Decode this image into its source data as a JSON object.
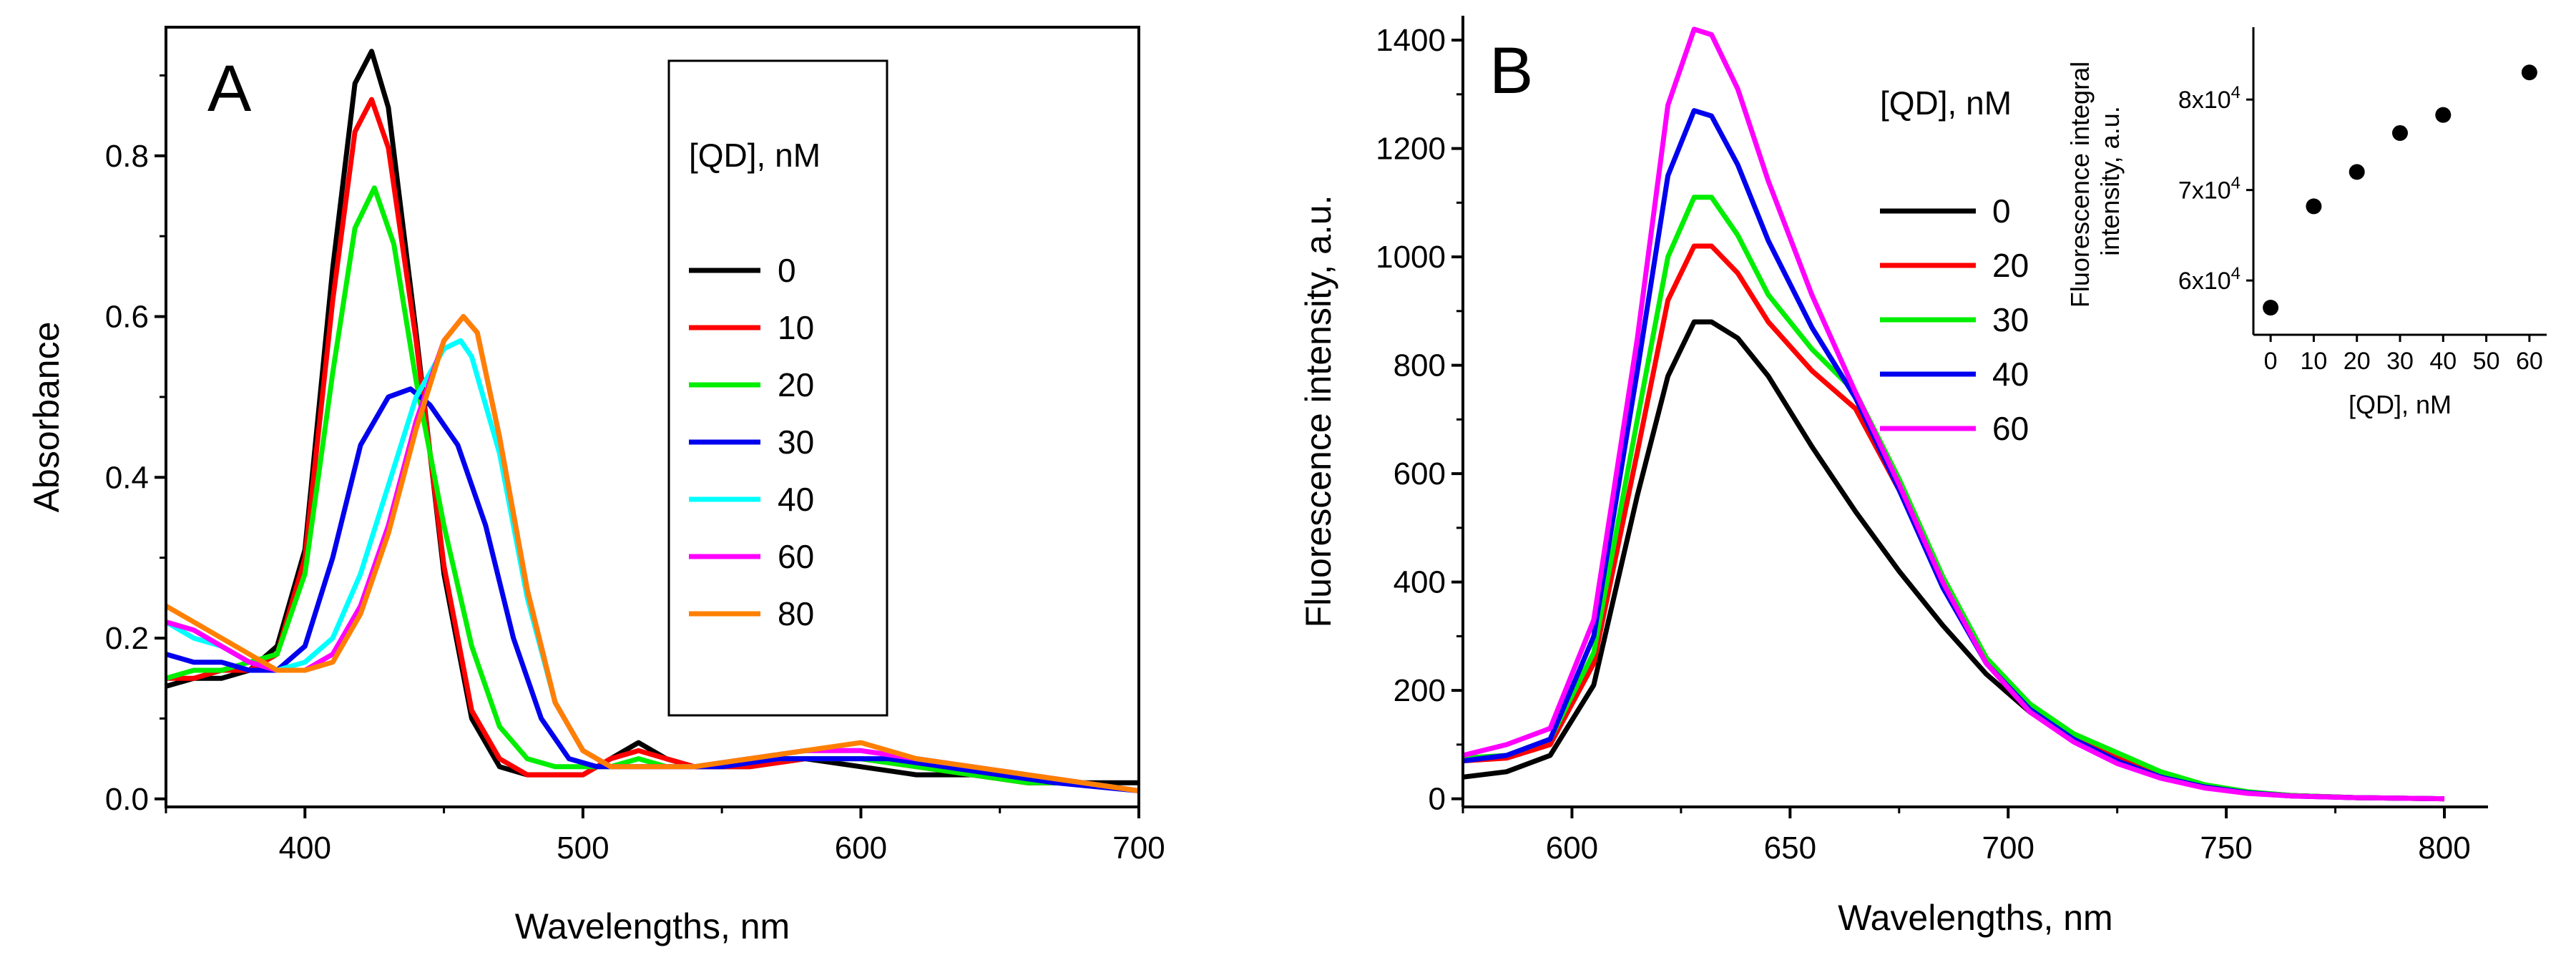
{
  "figure": {
    "panel_a_label": "A",
    "panel_b_label": "B"
  },
  "chart_data": [
    {
      "id": "A",
      "type": "line",
      "title": "",
      "xlabel": "Wavelengths, nm",
      "ylabel": "Absorbance",
      "xlim": [
        350,
        700
      ],
      "ylim": [
        -0.01,
        0.96
      ],
      "xticks": [
        400,
        500,
        600,
        700
      ],
      "yticks": [
        0.0,
        0.2,
        0.4,
        0.6,
        0.8
      ],
      "ytick_labels": [
        "0.0",
        "0.2",
        "0.4",
        "0.6",
        "0.8"
      ],
      "legend_title": "[QD], nM",
      "legend_position": "top-right",
      "series": [
        {
          "name": "0",
          "color": "#000000",
          "x": [
            350,
            360,
            370,
            380,
            390,
            400,
            410,
            418,
            424,
            430,
            440,
            450,
            460,
            470,
            480,
            490,
            500,
            510,
            520,
            530,
            540,
            560,
            580,
            600,
            620,
            640,
            660,
            680,
            700
          ],
          "y": [
            0.14,
            0.15,
            0.15,
            0.16,
            0.19,
            0.31,
            0.66,
            0.89,
            0.93,
            0.86,
            0.58,
            0.28,
            0.1,
            0.04,
            0.03,
            0.03,
            0.03,
            0.05,
            0.07,
            0.05,
            0.04,
            0.04,
            0.05,
            0.04,
            0.03,
            0.03,
            0.02,
            0.02,
            0.02
          ]
        },
        {
          "name": "10",
          "color": "#ff0000",
          "x": [
            350,
            360,
            370,
            380,
            390,
            400,
            410,
            418,
            424,
            430,
            440,
            450,
            460,
            470,
            480,
            490,
            500,
            510,
            520,
            530,
            540,
            560,
            580,
            600,
            620,
            640,
            660,
            680,
            700
          ],
          "y": [
            0.15,
            0.15,
            0.16,
            0.16,
            0.18,
            0.3,
            0.62,
            0.83,
            0.87,
            0.81,
            0.57,
            0.29,
            0.11,
            0.05,
            0.03,
            0.03,
            0.03,
            0.05,
            0.06,
            0.05,
            0.04,
            0.04,
            0.05,
            0.05,
            0.04,
            0.03,
            0.02,
            0.02,
            0.01
          ]
        },
        {
          "name": "20",
          "color": "#00ee00",
          "x": [
            350,
            360,
            370,
            380,
            390,
            400,
            410,
            418,
            425,
            432,
            440,
            450,
            460,
            470,
            480,
            490,
            500,
            510,
            520,
            530,
            540,
            560,
            580,
            600,
            620,
            640,
            660,
            680,
            700
          ],
          "y": [
            0.15,
            0.16,
            0.16,
            0.17,
            0.18,
            0.28,
            0.53,
            0.71,
            0.76,
            0.69,
            0.52,
            0.34,
            0.19,
            0.09,
            0.05,
            0.04,
            0.04,
            0.04,
            0.05,
            0.04,
            0.04,
            0.05,
            0.05,
            0.05,
            0.04,
            0.03,
            0.02,
            0.02,
            0.01
          ]
        },
        {
          "name": "30",
          "color": "#0000ee",
          "x": [
            350,
            360,
            370,
            380,
            390,
            400,
            410,
            420,
            430,
            438,
            445,
            455,
            465,
            475,
            485,
            495,
            505,
            515,
            530,
            550,
            570,
            590,
            610,
            630,
            650,
            670,
            700
          ],
          "y": [
            0.18,
            0.17,
            0.17,
            0.16,
            0.16,
            0.19,
            0.3,
            0.44,
            0.5,
            0.51,
            0.49,
            0.44,
            0.34,
            0.2,
            0.1,
            0.05,
            0.04,
            0.04,
            0.04,
            0.04,
            0.05,
            0.05,
            0.05,
            0.04,
            0.03,
            0.02,
            0.01
          ]
        },
        {
          "name": "40",
          "color": "#00ffff",
          "x": [
            350,
            360,
            370,
            380,
            390,
            400,
            410,
            420,
            430,
            440,
            450,
            456,
            460,
            470,
            480,
            490,
            500,
            510,
            520,
            540,
            560,
            580,
            600,
            620,
            640,
            660,
            700
          ],
          "y": [
            0.22,
            0.2,
            0.19,
            0.17,
            0.16,
            0.17,
            0.2,
            0.28,
            0.39,
            0.5,
            0.56,
            0.57,
            0.55,
            0.43,
            0.25,
            0.12,
            0.06,
            0.04,
            0.04,
            0.04,
            0.05,
            0.06,
            0.06,
            0.05,
            0.04,
            0.03,
            0.01
          ]
        },
        {
          "name": "60",
          "color": "#ff00ff",
          "x": [
            350,
            360,
            370,
            380,
            390,
            400,
            410,
            420,
            430,
            440,
            450,
            457,
            462,
            470,
            480,
            490,
            500,
            510,
            520,
            540,
            560,
            580,
            600,
            620,
            640,
            660,
            700
          ],
          "y": [
            0.22,
            0.21,
            0.19,
            0.17,
            0.16,
            0.16,
            0.18,
            0.24,
            0.34,
            0.47,
            0.57,
            0.6,
            0.58,
            0.45,
            0.26,
            0.12,
            0.06,
            0.04,
            0.04,
            0.04,
            0.05,
            0.06,
            0.06,
            0.05,
            0.04,
            0.03,
            0.01
          ]
        },
        {
          "name": "80",
          "color": "#ff8000",
          "x": [
            350,
            360,
            370,
            380,
            390,
            400,
            410,
            420,
            430,
            440,
            450,
            457,
            462,
            470,
            480,
            490,
            500,
            510,
            520,
            540,
            560,
            580,
            600,
            620,
            640,
            660,
            700
          ],
          "y": [
            0.24,
            0.22,
            0.2,
            0.18,
            0.16,
            0.16,
            0.17,
            0.23,
            0.33,
            0.46,
            0.57,
            0.6,
            0.58,
            0.45,
            0.26,
            0.12,
            0.06,
            0.04,
            0.04,
            0.04,
            0.05,
            0.06,
            0.07,
            0.05,
            0.04,
            0.03,
            0.01
          ]
        }
      ]
    },
    {
      "id": "B",
      "type": "line",
      "title": "",
      "xlabel": "Wavelengths, nm",
      "ylabel": "Fluorescence intensity, a.u.",
      "xlim": [
        575,
        810
      ],
      "ylim": [
        -15,
        1445
      ],
      "xticks": [
        600,
        650,
        700,
        750,
        800
      ],
      "yticks": [
        0,
        200,
        400,
        600,
        800,
        1000,
        1200,
        1400
      ],
      "legend_title": "[QD], nM",
      "legend_position": "top-right",
      "series": [
        {
          "name": "0",
          "color": "#000000",
          "x": [
            575,
            585,
            595,
            605,
            615,
            622,
            628,
            632,
            638,
            645,
            655,
            665,
            675,
            685,
            695,
            705,
            715,
            725,
            735,
            745,
            755,
            765,
            780,
            800
          ],
          "y": [
            40,
            50,
            80,
            210,
            560,
            780,
            880,
            880,
            850,
            780,
            650,
            530,
            420,
            320,
            230,
            160,
            110,
            70,
            40,
            22,
            12,
            6,
            2,
            0
          ]
        },
        {
          "name": "20",
          "color": "#ff0000",
          "x": [
            575,
            585,
            595,
            605,
            615,
            622,
            628,
            632,
            638,
            645,
            655,
            665,
            675,
            685,
            695,
            705,
            715,
            725,
            735,
            745,
            755,
            765,
            780,
            800
          ],
          "y": [
            70,
            75,
            100,
            250,
            640,
            920,
            1020,
            1020,
            970,
            880,
            790,
            720,
            570,
            400,
            260,
            170,
            110,
            75,
            45,
            25,
            12,
            6,
            2,
            0
          ]
        },
        {
          "name": "30",
          "color": "#00ee00",
          "x": [
            575,
            585,
            595,
            605,
            615,
            622,
            628,
            632,
            638,
            645,
            655,
            665,
            675,
            685,
            695,
            705,
            715,
            725,
            735,
            745,
            755,
            765,
            780,
            800
          ],
          "y": [
            75,
            80,
            110,
            270,
            700,
            1000,
            1110,
            1110,
            1040,
            930,
            830,
            750,
            590,
            410,
            260,
            175,
            120,
            85,
            50,
            26,
            13,
            6,
            2,
            0
          ]
        },
        {
          "name": "40",
          "color": "#0000ee",
          "x": [
            575,
            585,
            595,
            605,
            615,
            622,
            628,
            632,
            638,
            645,
            655,
            665,
            675,
            685,
            695,
            705,
            715,
            725,
            735,
            745,
            755,
            765,
            780,
            800
          ],
          "y": [
            70,
            80,
            110,
            300,
            790,
            1150,
            1270,
            1260,
            1170,
            1030,
            870,
            740,
            570,
            390,
            250,
            165,
            110,
            70,
            40,
            22,
            11,
            5,
            2,
            0
          ]
        },
        {
          "name": "60",
          "color": "#ff00ff",
          "x": [
            575,
            585,
            595,
            605,
            615,
            622,
            628,
            632,
            638,
            645,
            655,
            665,
            675,
            685,
            695,
            705,
            715,
            725,
            735,
            745,
            755,
            765,
            780,
            800
          ],
          "y": [
            80,
            100,
            130,
            330,
            850,
            1280,
            1420,
            1410,
            1310,
            1140,
            930,
            750,
            580,
            400,
            250,
            160,
            105,
            65,
            38,
            20,
            10,
            5,
            2,
            0
          ]
        }
      ]
    },
    {
      "id": "B-inset",
      "type": "scatter",
      "title": "",
      "xlabel": "[QD], nM",
      "ylabel": "Fluorescence integral intensity, a.u.",
      "ylabel_lines": [
        "Fluorescence integral",
        "intensity, a.u."
      ],
      "xlim": [
        -4,
        64
      ],
      "ylim": [
        54000,
        88000
      ],
      "xticks": [
        0,
        10,
        20,
        30,
        40,
        50,
        60
      ],
      "yticks": [
        60000,
        70000,
        80000
      ],
      "ytick_mantissa": [
        "6x10",
        "7x10",
        "8x10"
      ],
      "ytick_exponent": "4",
      "x": [
        0,
        10,
        20,
        30,
        40,
        60
      ],
      "y": [
        57000,
        68200,
        72000,
        76300,
        78300,
        83000
      ]
    }
  ]
}
